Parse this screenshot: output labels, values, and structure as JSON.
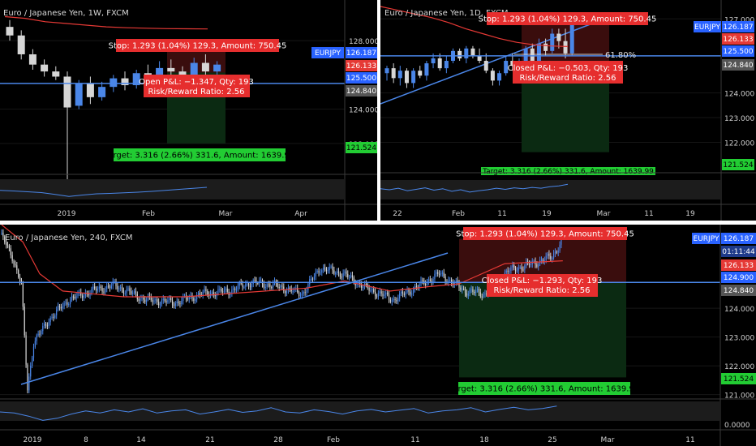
{
  "colors": {
    "background": "#000000",
    "up_candle": "#4a86e8",
    "down_candle": "#d6d6d6",
    "ma_line": "#e53935",
    "trend_line": "#4a86e8",
    "stop_zone": "#3a0d0d",
    "target_zone": "#0b2a12",
    "stop_label": "#e62e2e",
    "target_label": "#22cc33",
    "price_label": "#2962ff",
    "red_price_label": "#e53935",
    "grey_price_label": "#555555"
  },
  "chart_data": [
    {
      "type": "candlestick",
      "title": "Euro / Japanese Yen, 1W, FXCM",
      "symbol_badge": "EURJPY",
      "ylim": [
        120.2,
        129.8
      ],
      "y_ticks": [
        "128.000",
        "124.000",
        "122.000"
      ],
      "x_ticks": [
        "2019",
        "Feb",
        "Mar",
        "Apr"
      ],
      "price_labels": {
        "last": "126.187",
        "ma": "126.133",
        "hline": "125.500",
        "grey": "124.840",
        "target": "121.524"
      },
      "levels": {
        "hline": 125.5,
        "entry": 126.133,
        "stop": 127.43,
        "target": 122.0
      },
      "ohlc": [
        [
          128.8,
          129.2,
          128.0,
          128.3
        ],
        [
          128.3,
          128.6,
          126.9,
          127.2
        ],
        [
          127.2,
          127.5,
          126.3,
          126.6
        ],
        [
          126.6,
          126.9,
          125.9,
          126.2
        ],
        [
          126.2,
          126.5,
          125.7,
          125.9
        ],
        [
          125.9,
          126.2,
          119.9,
          124.1
        ],
        [
          124.2,
          125.7,
          124.0,
          125.5
        ],
        [
          125.5,
          125.9,
          124.3,
          124.7
        ],
        [
          124.7,
          125.6,
          124.5,
          125.3
        ],
        [
          125.3,
          126.0,
          125.0,
          125.8
        ],
        [
          125.8,
          126.2,
          125.1,
          125.4
        ],
        [
          125.4,
          126.3,
          125.2,
          126.1
        ],
        [
          126.1,
          126.6,
          125.6,
          125.8
        ],
        [
          125.8,
          126.8,
          125.5,
          126.4
        ],
        [
          126.4,
          126.9,
          125.9,
          126.2
        ],
        [
          126.2,
          126.5,
          125.6,
          125.9
        ],
        [
          125.9,
          127.0,
          125.7,
          126.7
        ],
        [
          126.7,
          127.2,
          125.9,
          126.2
        ],
        [
          126.2,
          126.8,
          125.8,
          126.6
        ]
      ],
      "ma": [
        129.4,
        129.3,
        129.1,
        129.0,
        128.9,
        128.8,
        128.75,
        128.72,
        128.7,
        128.69,
        128.68
      ],
      "oscillator": [
        0.45,
        0.42,
        0.38,
        0.34,
        0.25,
        0.15,
        0.22,
        0.28,
        0.3,
        0.33,
        0.36,
        0.4,
        0.45,
        0.5,
        0.55,
        0.6
      ],
      "position": {
        "stop_text": "Stop: 1.293 (1.04%) 129.3, Amount: 750.45",
        "target_text": "Target: 3.316 (2.66%) 331.6, Amount: 1639.99",
        "pnl_text": "Open P&L: −1.347, Qty: 193",
        "rr_text": "Risk/Reward Ratio: 2.56"
      }
    },
    {
      "type": "candlestick",
      "title": "Euro / Japanese Yen, 1D, FXCM",
      "symbol_badge": "EURJPY",
      "ylim": [
        120.8,
        127.6
      ],
      "y_ticks": [
        "127.000",
        "124.000",
        "123.000",
        "122.000"
      ],
      "x_ticks": [
        "22",
        "Feb",
        "11",
        "19",
        "Mar",
        "11",
        "19"
      ],
      "price_labels": {
        "last": "126.187",
        "ma": "126.133",
        "hline": "125.500",
        "grey": "124.840",
        "target": "121.524"
      },
      "levels": {
        "hline": 125.5,
        "entry": 125.0,
        "stop": 126.3,
        "target": 121.6
      },
      "fib_label": "61.80%",
      "ohlc": [
        [
          124.8,
          125.1,
          124.5,
          125.0
        ],
        [
          125.0,
          125.2,
          124.4,
          124.6
        ],
        [
          124.6,
          125.1,
          124.3,
          124.9
        ],
        [
          124.9,
          125.0,
          124.2,
          124.4
        ],
        [
          124.4,
          125.0,
          124.2,
          124.9
        ],
        [
          124.9,
          125.1,
          124.6,
          124.7
        ],
        [
          124.7,
          125.3,
          124.5,
          125.2
        ],
        [
          125.2,
          125.6,
          125.0,
          125.4
        ],
        [
          125.4,
          125.6,
          124.9,
          125.0
        ],
        [
          125.0,
          125.5,
          124.8,
          125.3
        ],
        [
          125.3,
          125.8,
          125.2,
          125.7
        ],
        [
          125.7,
          125.8,
          125.3,
          125.4
        ],
        [
          125.4,
          125.9,
          125.2,
          125.8
        ],
        [
          125.8,
          125.9,
          125.4,
          125.5
        ],
        [
          125.5,
          125.8,
          125.2,
          125.3
        ],
        [
          125.3,
          125.6,
          124.8,
          124.9
        ],
        [
          124.9,
          125.0,
          124.3,
          124.5
        ],
        [
          124.5,
          124.9,
          124.3,
          124.8
        ],
        [
          124.8,
          125.5,
          124.7,
          125.3
        ],
        [
          125.3,
          125.6,
          124.9,
          125.1
        ],
        [
          125.1,
          125.4,
          124.9,
          125.3
        ],
        [
          125.3,
          125.9,
          125.2,
          125.8
        ],
        [
          125.8,
          126.0,
          125.1,
          125.3
        ],
        [
          125.3,
          126.2,
          125.2,
          126.0
        ],
        [
          126.0,
          126.2,
          125.5,
          125.7
        ],
        [
          125.7,
          126.6,
          125.6,
          126.4
        ],
        [
          126.4,
          126.6,
          125.8,
          126.1
        ],
        [
          126.1,
          126.6,
          125.4,
          125.6
        ],
        [
          125.6,
          126.9,
          125.5,
          126.8
        ]
      ],
      "ma": [
        127.5,
        127.35,
        127.2,
        127.05,
        126.85,
        126.6,
        126.4,
        126.2,
        126.05,
        125.95,
        125.9,
        125.88
      ],
      "oscillator": [
        0.55,
        0.5,
        0.58,
        0.45,
        0.52,
        0.6,
        0.48,
        0.55,
        0.42,
        0.5,
        0.38,
        0.45,
        0.5,
        0.58,
        0.52,
        0.6,
        0.55,
        0.62,
        0.58,
        0.66,
        0.7,
        0.78
      ],
      "position": {
        "stop_text": "Stop: 1.293 (1.04%) 129.3, Amount: 750.45",
        "target_text": "Target: 3.316 (2.66%) 331.6, Amount: 1639.99",
        "pnl_text": "Closed P&L: −0.503, Qty: 193",
        "rr_text": "Risk/Reward Ratio: 2.56"
      }
    },
    {
      "type": "candlestick",
      "title": "Euro / Japanese Yen, 240, FXCM",
      "symbol_badge": "EURJPY",
      "ylim": [
        120.85,
        126.85
      ],
      "y_ticks": [
        "124.000",
        "123.000",
        "122.000",
        "121.000"
      ],
      "x_ticks": [
        "2019",
        "8",
        "14",
        "21",
        "28",
        "Feb",
        "11",
        "18",
        "25",
        "Mar",
        "11"
      ],
      "price_labels": {
        "last": "126.187",
        "timer": "01:11:44",
        "ma": "126.133",
        "hline": "124.900",
        "grey": "124.840",
        "target": "121.524"
      },
      "osc_tick": "0.0000",
      "levels": {
        "hline": 124.9,
        "entry": 124.9,
        "stop": 126.3,
        "target": 121.6
      },
      "anchors": [
        [
          0,
          126.6
        ],
        [
          8,
          125.8
        ],
        [
          14,
          124.8
        ],
        [
          18,
          121.2
        ],
        [
          22,
          122.8
        ],
        [
          32,
          123.6
        ],
        [
          45,
          124.3
        ],
        [
          60,
          124.6
        ],
        [
          75,
          124.8
        ],
        [
          95,
          124.3
        ],
        [
          115,
          124.2
        ],
        [
          132,
          124.5
        ],
        [
          150,
          124.6
        ],
        [
          165,
          124.9
        ],
        [
          180,
          124.8
        ],
        [
          198,
          124.5
        ],
        [
          210,
          125.4
        ],
        [
          225,
          125.2
        ],
        [
          240,
          124.7
        ],
        [
          258,
          124.3
        ],
        [
          272,
          124.7
        ],
        [
          288,
          125.2
        ],
        [
          305,
          124.6
        ],
        [
          318,
          124.5
        ],
        [
          333,
          125.3
        ],
        [
          352,
          125.6
        ],
        [
          362,
          125.8
        ],
        [
          368,
          126.3
        ]
      ],
      "ma": [
        [
          0,
          126.9
        ],
        [
          14,
          126.3
        ],
        [
          25,
          125.2
        ],
        [
          40,
          124.6
        ],
        [
          80,
          124.4
        ],
        [
          120,
          124.4
        ],
        [
          160,
          124.55
        ],
        [
          200,
          124.7
        ],
        [
          225,
          124.95
        ],
        [
          255,
          124.6
        ],
        [
          280,
          124.75
        ],
        [
          300,
          124.85
        ],
        [
          330,
          125.55
        ],
        [
          368,
          125.65
        ]
      ],
      "oscillator": [
        0.5,
        0.45,
        0.3,
        0.1,
        0.2,
        0.4,
        0.55,
        0.45,
        0.6,
        0.5,
        0.65,
        0.45,
        0.55,
        0.6,
        0.4,
        0.5,
        0.62,
        0.48,
        0.55,
        0.7,
        0.5,
        0.45,
        0.6,
        0.52,
        0.4,
        0.55,
        0.62,
        0.5,
        0.58,
        0.66,
        0.45,
        0.55,
        0.6,
        0.7,
        0.5,
        0.62,
        0.72,
        0.6,
        0.66,
        0.78
      ],
      "position": {
        "stop_text": "Stop: 1.293 (1.04%) 129.3, Amount: 750.45",
        "target_text": "Target: 3.316 (2.66%) 331.6, Amount: 1639.99",
        "pnl_text": "Closed P&L: −1.293, Qty: 193",
        "rr_text": "Risk/Reward Ratio: 2.56"
      }
    }
  ]
}
